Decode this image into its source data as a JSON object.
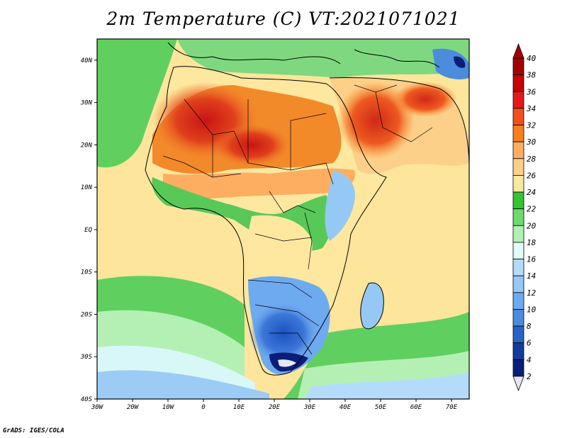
{
  "title": "2m Temperature (C) VT:2021071021",
  "credit": "GrADS: IGES/COLA",
  "map": {
    "lon_range": [
      -30,
      75
    ],
    "lat_range": [
      -40,
      45
    ],
    "lon_ticks": [
      "30W",
      "20W",
      "10W",
      "0",
      "10E",
      "20E",
      "30E",
      "40E",
      "50E",
      "60E",
      "70E"
    ],
    "lat_ticks": [
      "40N",
      "30N",
      "20N",
      "10N",
      "EQ",
      "10S",
      "20S",
      "30S",
      "40S"
    ]
  },
  "colorbar": {
    "labels": [
      "40",
      "38",
      "36",
      "34",
      "32",
      "30",
      "28",
      "26",
      "24",
      "22",
      "20",
      "18",
      "16",
      "14",
      "12",
      "10",
      "8",
      "6",
      "4",
      "2"
    ],
    "colors": [
      "#a50000",
      "#c80000",
      "#e31a1c",
      "#f0501e",
      "#fa7e1e",
      "#fdae61",
      "#fdd08a",
      "#fee8a0",
      "#34c534",
      "#6ed96e",
      "#b4f0b4",
      "#e1fafa",
      "#b4dcfa",
      "#96c8f5",
      "#6eaaf0",
      "#4b8cdc",
      "#2864c8",
      "#143c9b",
      "#0a1e78"
    ],
    "top_arrow_color": "#a50000",
    "bottom_arrow_color": "#e6e6fa"
  }
}
